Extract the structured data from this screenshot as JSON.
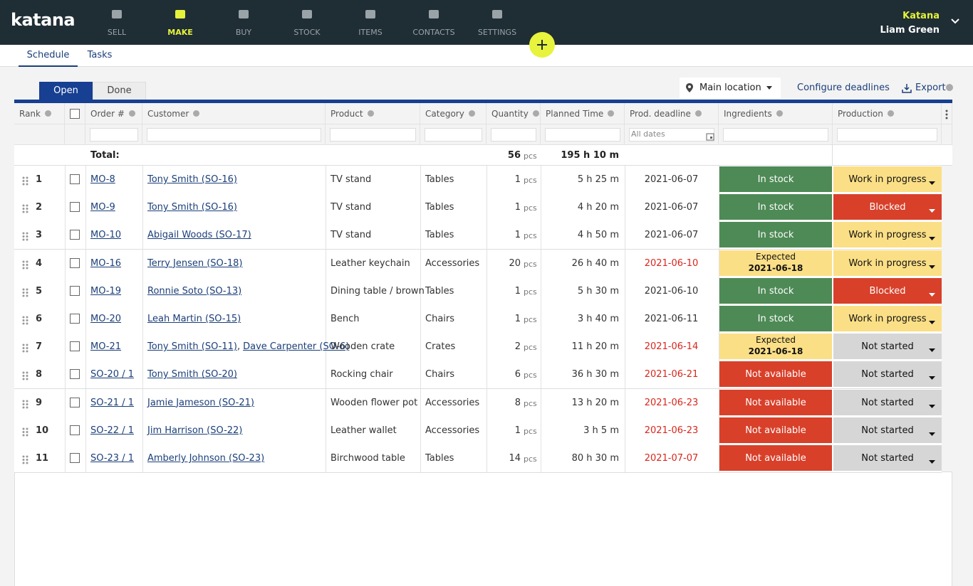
{
  "header": {
    "logo": "katana",
    "nav": [
      "SELL",
      "MAKE",
      "BUY",
      "STOCK",
      "ITEMS",
      "CONTACTS",
      "SETTINGS"
    ],
    "active_nav": 1,
    "company": "Katana",
    "user": "Liam Green"
  },
  "tabs": [
    "Schedule",
    "Tasks"
  ],
  "toolbar": {
    "status_tabs": [
      "Open",
      "Done"
    ],
    "location": "Main location",
    "configure": "Configure deadlines",
    "export": "Export"
  },
  "table": {
    "columns": [
      "Rank",
      "Order #",
      "Customer",
      "Product",
      "Category",
      "Quantity",
      "Planned Time",
      "Prod. deadline",
      "Ingredients",
      "Production"
    ],
    "date_filter": "All dates",
    "customer_separator": ",",
    "total": {
      "label": "Total:",
      "quantity": 56,
      "unit": "pcs",
      "time": "195 h 10 m"
    },
    "rows": [
      {
        "rank": 1,
        "order": "MO-8",
        "customers": [
          "Tony Smith (SO-16)"
        ],
        "product": "TV stand",
        "category": "Tables",
        "quantity": 1,
        "unit": "pcs",
        "time": "5 h 25 m",
        "deadline": "2021-06-07",
        "deadline_color": "#333",
        "ingredients": {
          "label": "In stock",
          "color": "#4e8a56",
          "text_color": "#fff"
        },
        "production": {
          "label": "Work in progress",
          "color": "#fbdf86",
          "text_color": "#111"
        }
      },
      {
        "rank": 2,
        "order": "MO-9",
        "customers": [
          "Tony Smith (SO-16)"
        ],
        "product": "TV stand",
        "category": "Tables",
        "quantity": 1,
        "unit": "pcs",
        "time": "4 h 20 m",
        "deadline": "2021-06-07",
        "deadline_color": "#333",
        "ingredients": {
          "label": "In stock",
          "color": "#4e8a56",
          "text_color": "#fff"
        },
        "production": {
          "label": "Blocked",
          "color": "#d8402a",
          "text_color": "#fff"
        }
      },
      {
        "rank": 3,
        "order": "MO-10",
        "customers": [
          "Abigail Woods (SO-17)"
        ],
        "product": "TV stand",
        "category": "Tables",
        "quantity": 1,
        "unit": "pcs",
        "time": "4 h 50 m",
        "deadline": "2021-06-07",
        "deadline_color": "#333",
        "ingredients": {
          "label": "In stock",
          "color": "#4e8a56",
          "text_color": "#fff"
        },
        "production": {
          "label": "Work in progress",
          "color": "#fbdf86",
          "text_color": "#111"
        }
      },
      {
        "rank": 4,
        "order": "MO-16",
        "customers": [
          "Terry Jensen (SO-18)"
        ],
        "product": "Leather keychain",
        "category": "Accessories",
        "quantity": 20,
        "unit": "pcs",
        "time": "26 h 40 m",
        "deadline": "2021-06-10",
        "deadline_color": "#d8261c",
        "ingredients": {
          "label": "Expected",
          "date": "2021-06-18",
          "color": "#fbdf86",
          "text_color": "#111"
        },
        "production": {
          "label": "Work in progress",
          "color": "#fbdf86",
          "text_color": "#111"
        }
      },
      {
        "rank": 5,
        "order": "MO-19",
        "customers": [
          "Ronnie Soto (SO-13)"
        ],
        "product": "Dining table / brown",
        "category": "Tables",
        "quantity": 1,
        "unit": "pcs",
        "time": "5 h 30 m",
        "deadline": "2021-06-10",
        "deadline_color": "#333",
        "ingredients": {
          "label": "In stock",
          "color": "#4e8a56",
          "text_color": "#fff"
        },
        "production": {
          "label": "Blocked",
          "color": "#d8402a",
          "text_color": "#fff"
        }
      },
      {
        "rank": 6,
        "order": "MO-20",
        "customers": [
          "Leah Martin (SO-15)"
        ],
        "product": "Bench",
        "category": "Chairs",
        "quantity": 1,
        "unit": "pcs",
        "time": "3 h 40 m",
        "deadline": "2021-06-11",
        "deadline_color": "#333",
        "ingredients": {
          "label": "In stock",
          "color": "#4e8a56",
          "text_color": "#fff"
        },
        "production": {
          "label": "Work in progress",
          "color": "#fbdf86",
          "text_color": "#111"
        }
      },
      {
        "rank": 7,
        "order": "MO-21",
        "customers": [
          "Tony Smith (SO-11)",
          "Dave Carpenter (SO-6)"
        ],
        "product": "Wooden crate",
        "category": "Crates",
        "quantity": 2,
        "unit": "pcs",
        "time": "11 h 20 m",
        "deadline": "2021-06-14",
        "deadline_color": "#d8261c",
        "ingredients": {
          "label": "Expected",
          "date": "2021-06-18",
          "color": "#fbdf86",
          "text_color": "#111"
        },
        "production": {
          "label": "Not started",
          "color": "#d6d6d6",
          "text_color": "#111"
        }
      },
      {
        "rank": 8,
        "order": "SO-20 / 1",
        "customers": [
          "Tony Smith (SO-20)"
        ],
        "product": "Rocking chair",
        "category": "Chairs",
        "quantity": 6,
        "unit": "pcs",
        "time": "36 h 30 m",
        "deadline": "2021-06-21",
        "deadline_color": "#d8261c",
        "ingredients": {
          "label": "Not available",
          "color": "#d8402a",
          "text_color": "#fff"
        },
        "production": {
          "label": "Not started",
          "color": "#d6d6d6",
          "text_color": "#111"
        }
      },
      {
        "rank": 9,
        "order": "SO-21 / 1",
        "customers": [
          "Jamie Jameson (SO-21)"
        ],
        "product": "Wooden flower pot",
        "category": "Accessories",
        "quantity": 8,
        "unit": "pcs",
        "time": "13 h 20 m",
        "deadline": "2021-06-23",
        "deadline_color": "#d8261c",
        "ingredients": {
          "label": "Not available",
          "color": "#d8402a",
          "text_color": "#fff"
        },
        "production": {
          "label": "Not started",
          "color": "#d6d6d6",
          "text_color": "#111"
        }
      },
      {
        "rank": 10,
        "order": "SO-22 / 1",
        "customers": [
          "Jim Harrison (SO-22)"
        ],
        "product": "Leather wallet",
        "category": "Accessories",
        "quantity": 1,
        "unit": "pcs",
        "time": "3 h 5 m",
        "deadline": "2021-06-23",
        "deadline_color": "#d8261c",
        "ingredients": {
          "label": "Not available",
          "color": "#d8402a",
          "text_color": "#fff"
        },
        "production": {
          "label": "Not started",
          "color": "#d6d6d6",
          "text_color": "#111"
        }
      },
      {
        "rank": 11,
        "order": "SO-23 / 1",
        "customers": [
          "Amberly Johnson (SO-23)"
        ],
        "product": "Birchwood table",
        "category": "Tables",
        "quantity": 14,
        "unit": "pcs",
        "time": "80 h 30 m",
        "deadline": "2021-07-07",
        "deadline_color": "#d8261c",
        "ingredients": {
          "label": "Not available",
          "color": "#d8402a",
          "text_color": "#fff"
        },
        "production": {
          "label": "Not started",
          "color": "#d6d6d6",
          "text_color": "#111"
        }
      }
    ]
  }
}
